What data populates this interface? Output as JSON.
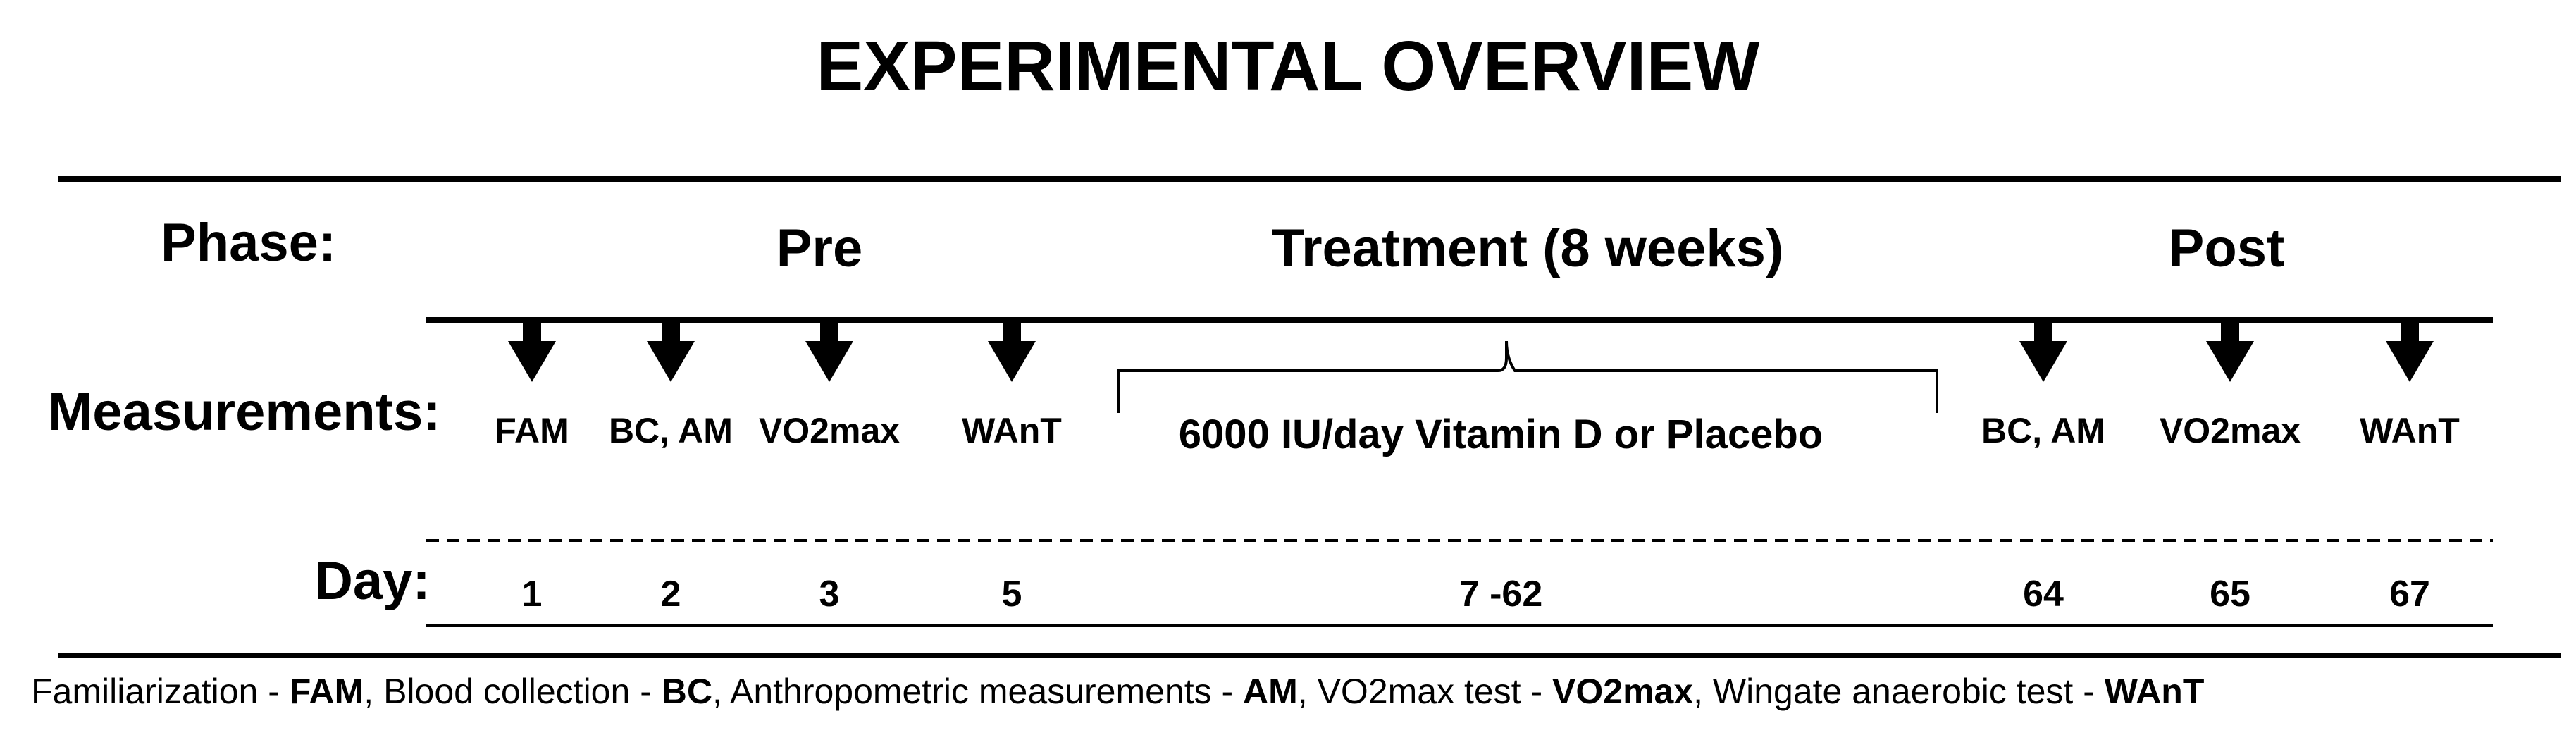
{
  "title": "EXPERIMENTAL OVERVIEW",
  "row_labels": {
    "phase": "Phase:",
    "measurements": "Measurements:",
    "day": "Day:"
  },
  "phases": {
    "pre": "Pre",
    "treatment": "Treatment (8 weeks)",
    "post": "Post"
  },
  "treatment_label": "6000 IU/day Vitamin D or Placebo",
  "treatment_days": "7 -62",
  "measurements": [
    {
      "label": "FAM",
      "day": "1"
    },
    {
      "label": "BC, AM",
      "day": "2"
    },
    {
      "label": "VO2max",
      "day": "3"
    },
    {
      "label": "WAnT",
      "day": "5"
    },
    {
      "label": "BC, AM",
      "day": "64"
    },
    {
      "label": "VO2max",
      "day": "65"
    },
    {
      "label": "WAnT",
      "day": "67"
    }
  ],
  "legend": [
    {
      "text": "Familiarization - ",
      "abbr": "FAM"
    },
    {
      "text": ", Blood collection - ",
      "abbr": "BC"
    },
    {
      "text": ", Anthropometric measurements - ",
      "abbr": "AM"
    },
    {
      "text": ", VO2max test - ",
      "abbr": "VO2max"
    },
    {
      "text": ", Wingate anaerobic test - ",
      "abbr": "WAnT"
    }
  ]
}
